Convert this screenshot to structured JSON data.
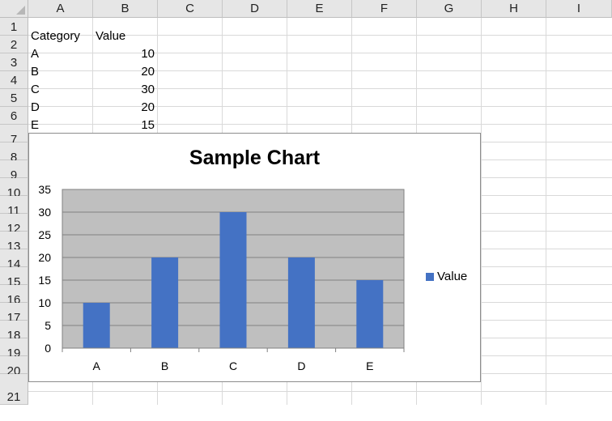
{
  "sheet": {
    "columns": [
      "A",
      "B",
      "C",
      "D",
      "E",
      "F",
      "G",
      "H",
      "I"
    ],
    "rows": [
      "1",
      "2",
      "3",
      "4",
      "5",
      "6",
      "7",
      "8",
      "9",
      "10",
      "11",
      "12",
      "13",
      "14",
      "15",
      "16",
      "17",
      "18",
      "19",
      "20",
      "21"
    ],
    "cells": {
      "header_category": "Category",
      "header_value": "Value",
      "data": [
        {
          "category": "A",
          "value": "10"
        },
        {
          "category": "B",
          "value": "20"
        },
        {
          "category": "C",
          "value": "30"
        },
        {
          "category": "D",
          "value": "20"
        },
        {
          "category": "E",
          "value": "15"
        }
      ]
    }
  },
  "chart_data": {
    "type": "bar",
    "title": "Sample Chart",
    "categories": [
      "A",
      "B",
      "C",
      "D",
      "E"
    ],
    "series": [
      {
        "name": "Value",
        "values": [
          10,
          20,
          30,
          20,
          15
        ]
      }
    ],
    "ylim": [
      0,
      35
    ],
    "yticks": [
      0,
      5,
      10,
      15,
      20,
      25,
      30,
      35
    ],
    "ytick_labels": [
      "0",
      "5",
      "10",
      "15",
      "20",
      "25",
      "30",
      "35"
    ],
    "grid": true,
    "legend_position": "right",
    "colors": {
      "bar": "#4472c4",
      "plot_bg": "#bfbfbf",
      "grid": "#808080"
    }
  }
}
